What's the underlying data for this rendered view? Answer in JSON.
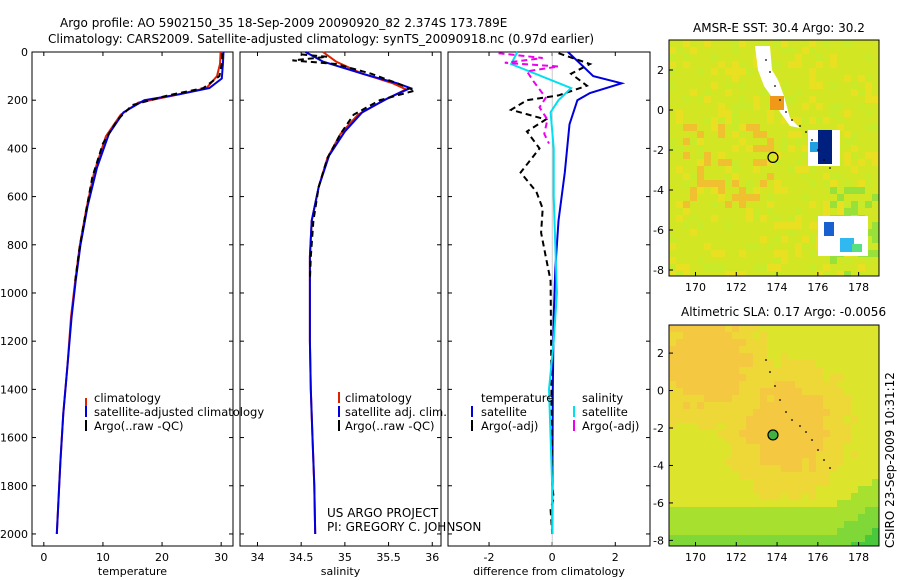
{
  "title": {
    "line1": "Argo profile: AO 5902150_35 18-Sep-2009 20090920_82 2.374S 173.789E",
    "line2": "Climatology: CARS2009. Satellite-adjusted climatology: synTS_20090918.nc (0.97d earlier)"
  },
  "side_label": "CSIRO 23-Sep-2009 10:31:12",
  "credit": {
    "line1": "US ARGO PROJECT",
    "line2": "PI: GREGORY C. JOHNSON"
  },
  "colors": {
    "red": "#dd2200",
    "blue": "#0000dd",
    "black": "#000000",
    "cyan": "#00e0f0",
    "magenta": "#ee00ee"
  },
  "chart_data": [
    {
      "type": "line",
      "name": "temperature",
      "xlabel": "temperature",
      "xlim": [
        -2,
        32
      ],
      "ylim": [
        0,
        2050
      ],
      "xticks": [
        0,
        10,
        20,
        30
      ],
      "yticks": [
        0,
        200,
        400,
        600,
        800,
        1000,
        1200,
        1400,
        1600,
        1800,
        2000
      ],
      "legend": [
        "climatology",
        "satellite-adjusted climatology",
        "Argo(..raw -QC)"
      ],
      "series": [
        {
          "name": "climatology",
          "color": "red",
          "dash": false,
          "points": [
            [
              29.9,
              0
            ],
            [
              29.8,
              50
            ],
            [
              29.3,
              100
            ],
            [
              27.5,
              150
            ],
            [
              22,
              180
            ],
            [
              16,
              210
            ],
            [
              13,
              260
            ],
            [
              10.5,
              350
            ],
            [
              8.5,
              500
            ],
            [
              7.2,
              650
            ],
            [
              6.1,
              800
            ],
            [
              5.3,
              950
            ],
            [
              4.6,
              1100
            ],
            [
              4.0,
              1300
            ],
            [
              3.3,
              1500
            ],
            [
              2.8,
              1700
            ],
            [
              2.4,
              1900
            ],
            [
              2.2,
              2000
            ]
          ]
        },
        {
          "name": "satellite-adjusted climatology",
          "color": "blue",
          "dash": false,
          "points": [
            [
              30.4,
              0
            ],
            [
              30.3,
              50
            ],
            [
              30.1,
              110
            ],
            [
              28,
              150
            ],
            [
              23,
              175
            ],
            [
              17,
              200
            ],
            [
              13.5,
              250
            ],
            [
              11,
              340
            ],
            [
              9,
              480
            ],
            [
              7.4,
              640
            ],
            [
              6.2,
              800
            ],
            [
              5.4,
              950
            ],
            [
              4.7,
              1100
            ],
            [
              4.0,
              1300
            ],
            [
              3.3,
              1500
            ],
            [
              2.8,
              1700
            ],
            [
              2.4,
              1900
            ],
            [
              2.2,
              2000
            ]
          ]
        },
        {
          "name": "Argo(..raw -QC)",
          "color": "black",
          "dash": true,
          "points": [
            [
              30.2,
              5
            ],
            [
              30.1,
              50
            ],
            [
              29.7,
              100
            ],
            [
              27,
              150
            ],
            [
              21,
              180
            ],
            [
              15,
              220
            ],
            [
              12.5,
              280
            ],
            [
              10,
              380
            ],
            [
              8.2,
              520
            ],
            [
              7,
              680
            ],
            [
              6,
              820
            ],
            [
              5.3,
              950
            ]
          ]
        }
      ]
    },
    {
      "type": "line",
      "name": "salinity",
      "xlabel": "salinity",
      "xlim": [
        33.8,
        36.1
      ],
      "ylim": [
        0,
        2050
      ],
      "xticks": [
        34,
        34.5,
        35,
        35.5,
        36
      ],
      "legend": [
        "climatology",
        "satellite adj. clim.",
        "Argo(..raw -QC)"
      ],
      "series": [
        {
          "name": "climatology",
          "color": "red",
          "dash": false,
          "points": [
            [
              34.75,
              0
            ],
            [
              34.9,
              40
            ],
            [
              35.2,
              90
            ],
            [
              35.55,
              130
            ],
            [
              35.7,
              155
            ],
            [
              35.45,
              200
            ],
            [
              35.15,
              260
            ],
            [
              34.95,
              340
            ],
            [
              34.8,
              440
            ],
            [
              34.7,
              560
            ],
            [
              34.62,
              700
            ],
            [
              34.6,
              850
            ],
            [
              34.6,
              1000
            ],
            [
              34.6,
              1200
            ],
            [
              34.61,
              1400
            ],
            [
              34.63,
              1600
            ],
            [
              34.65,
              1800
            ],
            [
              34.66,
              2000
            ]
          ]
        },
        {
          "name": "satellite adj. clim.",
          "color": "blue",
          "dash": false,
          "points": [
            [
              34.55,
              0
            ],
            [
              34.75,
              40
            ],
            [
              35.2,
              90
            ],
            [
              35.6,
              130
            ],
            [
              35.75,
              150
            ],
            [
              35.5,
              190
            ],
            [
              35.2,
              250
            ],
            [
              35,
              330
            ],
            [
              34.82,
              430
            ],
            [
              34.7,
              560
            ],
            [
              34.62,
              700
            ],
            [
              34.6,
              850
            ],
            [
              34.6,
              1000
            ],
            [
              34.6,
              1200
            ],
            [
              34.61,
              1400
            ],
            [
              34.63,
              1600
            ],
            [
              34.65,
              1800
            ],
            [
              34.66,
              2000
            ]
          ]
        },
        {
          "name": "Argo(..raw -QC)",
          "color": "black",
          "dash": true,
          "points": [
            [
              34.5,
              10
            ],
            [
              34.8,
              20
            ],
            [
              34.4,
              35
            ],
            [
              34.9,
              50
            ],
            [
              35.3,
              90
            ],
            [
              35.6,
              130
            ],
            [
              35.8,
              160
            ],
            [
              35.4,
              200
            ],
            [
              35.1,
              260
            ],
            [
              34.95,
              340
            ],
            [
              34.8,
              440
            ],
            [
              34.7,
              560
            ],
            [
              34.64,
              700
            ],
            [
              34.61,
              850
            ],
            [
              34.6,
              950
            ]
          ]
        }
      ]
    },
    {
      "type": "line",
      "name": "difference",
      "xlabel": "difference from climatology",
      "xlim": [
        -3.3,
        3.1
      ],
      "ylim": [
        0,
        2050
      ],
      "xticks": [
        -2,
        0,
        2
      ],
      "legend_headers": [
        "temperature",
        "salinity"
      ],
      "legend": [
        "satellite",
        "Argo(-adj)",
        "satellite",
        "Argo(-adj)"
      ],
      "series": [
        {
          "name": "temperature satellite",
          "color": "blue",
          "dash": false,
          "points": [
            [
              0.5,
              0
            ],
            [
              0.9,
              50
            ],
            [
              1.3,
              100
            ],
            [
              2.2,
              130
            ],
            [
              1.2,
              170
            ],
            [
              0.8,
              200
            ],
            [
              0.55,
              300
            ],
            [
              0.4,
              500
            ],
            [
              0.2,
              700
            ],
            [
              0.1,
              900
            ],
            [
              0.05,
              1100
            ],
            [
              0.02,
              1400
            ],
            [
              0,
              2000
            ]
          ]
        },
        {
          "name": "Argo(-adj) temperature",
          "color": "black",
          "dash": true,
          "points": [
            [
              0.2,
              5
            ],
            [
              1.2,
              50
            ],
            [
              0.6,
              90
            ],
            [
              1.1,
              140
            ],
            [
              0.2,
              180
            ],
            [
              -0.8,
              200
            ],
            [
              -1.3,
              240
            ],
            [
              -0.2,
              280
            ],
            [
              -0.8,
              330
            ],
            [
              -0.4,
              400
            ],
            [
              -1.0,
              500
            ],
            [
              -0.5,
              580
            ],
            [
              -0.3,
              650
            ],
            [
              -0.35,
              750
            ],
            [
              -0.2,
              850
            ],
            [
              -0.05,
              950
            ],
            [
              0,
              1800
            ],
            [
              0.05,
              1850
            ],
            [
              -0.05,
              1900
            ],
            [
              0,
              2000
            ]
          ]
        },
        {
          "name": "salinity satellite",
          "color": "cyan",
          "dash": false,
          "points": [
            [
              -1.1,
              0
            ],
            [
              -1.3,
              50
            ],
            [
              0.6,
              150
            ],
            [
              0.2,
              200
            ],
            [
              -0.05,
              250
            ],
            [
              0.05,
              400
            ],
            [
              0.05,
              600
            ],
            [
              0.1,
              800
            ],
            [
              0.15,
              1000
            ],
            [
              0.05,
              1200
            ],
            [
              -0.1,
              1400
            ],
            [
              -0.05,
              1600
            ],
            [
              0,
              1800
            ],
            [
              0,
              2000
            ]
          ]
        },
        {
          "name": "Argo(-adj) salinity",
          "color": "magenta",
          "dash": true,
          "points": [
            [
              -1.7,
              5
            ],
            [
              -0.3,
              25
            ],
            [
              -1.5,
              45
            ],
            [
              0.2,
              60
            ],
            [
              -0.8,
              80
            ],
            [
              -0.6,
              120
            ],
            [
              -0.2,
              190
            ],
            [
              -0.4,
              230
            ],
            [
              -0.15,
              280
            ],
            [
              -0.25,
              340
            ],
            [
              -0.1,
              380
            ]
          ]
        }
      ]
    },
    {
      "type": "heatmap",
      "name": "sst-map",
      "title": "AMSR-E SST: 30.4 Argo: 30.2",
      "xlim": [
        168.7,
        179
      ],
      "ylim": [
        -8.3,
        3.5
      ],
      "xticks": [
        170,
        172,
        174,
        176,
        178
      ],
      "yticks": [
        2,
        0,
        -2,
        -4,
        -6,
        -8
      ],
      "argo_position": [
        173.8,
        -2.37
      ]
    },
    {
      "type": "heatmap",
      "name": "sla-map",
      "title": "Altimetric SLA: 0.17 Argo: -0.0056",
      "xlim": [
        168.7,
        179
      ],
      "ylim": [
        -8.3,
        3.5
      ],
      "xticks": [
        170,
        172,
        174,
        176,
        178
      ],
      "yticks": [
        2,
        0,
        -2,
        -4,
        -6,
        -8
      ],
      "argo_position": [
        173.8,
        -2.37
      ]
    }
  ]
}
